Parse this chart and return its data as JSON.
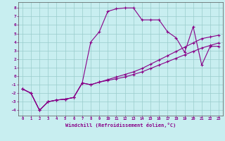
{
  "xlabel": "Windchill (Refroidissement éolien,°C)",
  "bg_color": "#c8eef0",
  "line_color": "#880088",
  "grid_color": "#99cccc",
  "xlim": [
    -0.5,
    23.5
  ],
  "ylim": [
    -4.6,
    8.7
  ],
  "xticks": [
    0,
    1,
    2,
    3,
    4,
    5,
    6,
    7,
    8,
    9,
    10,
    11,
    12,
    13,
    14,
    15,
    16,
    17,
    18,
    19,
    20,
    21,
    22,
    23
  ],
  "yticks": [
    -4,
    -3,
    -2,
    -1,
    0,
    1,
    2,
    3,
    4,
    5,
    6,
    7,
    8
  ],
  "line1_x": [
    0,
    1,
    2,
    3,
    4,
    5,
    6,
    7,
    8,
    9,
    10,
    11,
    12,
    13,
    14,
    15,
    16,
    17,
    18,
    19,
    20,
    21,
    22,
    23
  ],
  "line1_y": [
    -1.5,
    -2.0,
    -4.0,
    -3.0,
    -2.8,
    -2.7,
    -2.5,
    -0.8,
    4.0,
    5.2,
    7.6,
    7.9,
    8.0,
    8.0,
    6.6,
    6.6,
    6.6,
    5.2,
    4.5,
    2.8,
    5.8,
    1.3,
    3.5,
    3.5
  ],
  "line2_x": [
    0,
    1,
    2,
    3,
    4,
    5,
    6,
    7,
    8,
    9,
    10,
    11,
    12,
    13,
    14,
    15,
    16,
    17,
    18,
    19,
    20,
    21,
    22,
    23
  ],
  "line2_y": [
    -1.5,
    -2.0,
    -4.0,
    -3.0,
    -2.8,
    -2.7,
    -2.5,
    -0.8,
    -1.0,
    -0.7,
    -0.5,
    -0.3,
    -0.1,
    0.2,
    0.5,
    0.9,
    1.3,
    1.7,
    2.1,
    2.5,
    2.9,
    3.3,
    3.6,
    3.9
  ],
  "line3_x": [
    0,
    1,
    2,
    3,
    4,
    5,
    6,
    7,
    8,
    9,
    10,
    11,
    12,
    13,
    14,
    15,
    16,
    17,
    18,
    19,
    20,
    21,
    22,
    23
  ],
  "line3_y": [
    -1.5,
    -2.0,
    -4.0,
    -3.0,
    -2.8,
    -2.7,
    -2.5,
    -0.8,
    -1.0,
    -0.7,
    -0.4,
    -0.1,
    0.2,
    0.5,
    0.9,
    1.4,
    1.9,
    2.4,
    2.9,
    3.4,
    3.9,
    4.4,
    4.6,
    4.8
  ]
}
